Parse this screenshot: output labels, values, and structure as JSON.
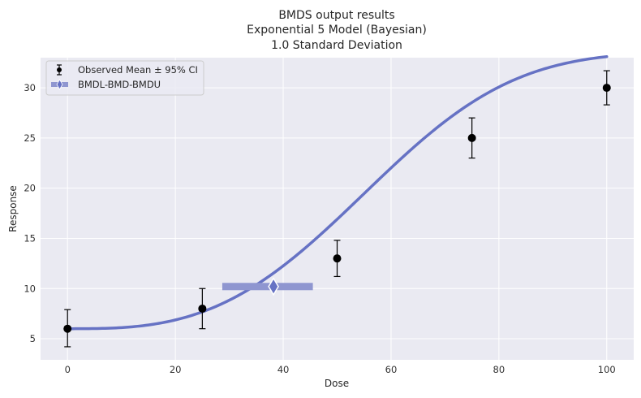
{
  "chart_data": {
    "type": "line",
    "title": [
      "BMDS output results",
      "Exponential 5 Model (Bayesian)",
      "1.0 Standard Deviation"
    ],
    "xlabel": "Dose",
    "ylabel": "Response",
    "xlim": [
      -5,
      105
    ],
    "ylim": [
      2.9,
      33.0
    ],
    "xticks": [
      0,
      20,
      40,
      60,
      80,
      100
    ],
    "yticks": [
      5,
      10,
      15,
      20,
      25,
      30
    ],
    "grid": true,
    "legend_position": "top-left",
    "observed": {
      "name": "Observed Mean ± 95% CI",
      "x": [
        0,
        25,
        50,
        75,
        100
      ],
      "mean": [
        6.0,
        8.0,
        13.0,
        25.0,
        30.0
      ],
      "ci_low": [
        4.2,
        6.0,
        11.2,
        23.0,
        28.3
      ],
      "ci_high": [
        7.9,
        10.0,
        14.8,
        27.0,
        31.7
      ]
    },
    "model_curve": {
      "params": {
        "a": 6.0,
        "c": 5.6,
        "b": 0.0159,
        "d": 3.0
      },
      "x_range": [
        0,
        100
      ],
      "color": "#6672c4"
    },
    "bmd": {
      "name": "BMDL-BMD-BMDU",
      "bmdl": 28.7,
      "bmd": 38.2,
      "bmdu": 45.5,
      "response": 10.2,
      "color": "#8f96d0"
    },
    "colors": {
      "background": "#eaeaf2",
      "grid": "#ffffff",
      "observed": "#000000"
    }
  }
}
